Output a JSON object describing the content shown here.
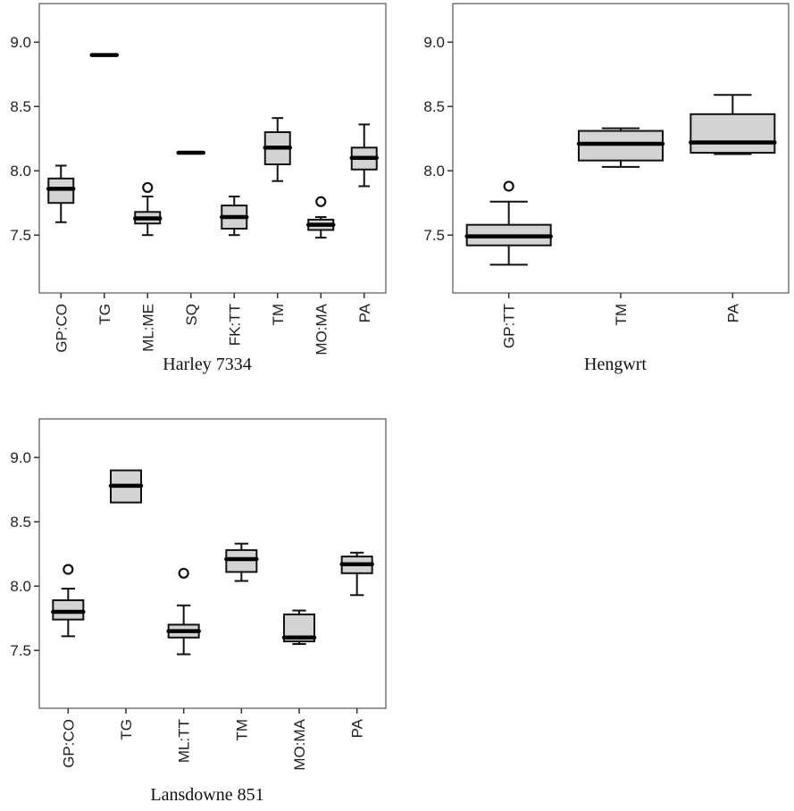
{
  "chart_data": [
    {
      "type": "boxplot",
      "caption": "Harley 7334",
      "ylim": [
        7.05,
        9.3
      ],
      "yticks": [
        "7.5",
        "8.0",
        "8.5",
        "9.0"
      ],
      "categories": [
        "GP:CO",
        "TG",
        "ML:ME",
        "SQ",
        "FK:TT",
        "TM",
        "MO:MA",
        "PA"
      ],
      "boxes": [
        {
          "min": 7.6,
          "q1": 7.75,
          "median": 7.86,
          "q3": 7.94,
          "max": 8.04,
          "outliers": []
        },
        {
          "min": 8.9,
          "q1": 8.9,
          "median": 8.9,
          "q3": 8.9,
          "max": 8.9,
          "outliers": []
        },
        {
          "min": 7.5,
          "q1": 7.59,
          "median": 7.63,
          "q3": 7.68,
          "max": 7.8,
          "outliers": [
            7.87
          ]
        },
        {
          "min": 8.14,
          "q1": 8.14,
          "median": 8.14,
          "q3": 8.14,
          "max": 8.14,
          "outliers": []
        },
        {
          "min": 7.5,
          "q1": 7.55,
          "median": 7.64,
          "q3": 7.73,
          "max": 7.8,
          "outliers": []
        },
        {
          "min": 7.92,
          "q1": 8.05,
          "median": 8.18,
          "q3": 8.3,
          "max": 8.41,
          "outliers": []
        },
        {
          "min": 7.48,
          "q1": 7.54,
          "median": 7.58,
          "q3": 7.62,
          "max": 7.64,
          "outliers": [
            7.76
          ]
        },
        {
          "min": 7.88,
          "q1": 8.01,
          "median": 8.1,
          "q3": 8.18,
          "max": 8.36,
          "outliers": []
        }
      ]
    },
    {
      "type": "boxplot",
      "caption": "Hengwrt",
      "ylim": [
        7.05,
        9.3
      ],
      "yticks": [
        "7.5",
        "8.0",
        "8.5",
        "9.0"
      ],
      "categories": [
        "GP:TT",
        "TM",
        "PA"
      ],
      "boxes": [
        {
          "min": 7.27,
          "q1": 7.42,
          "median": 7.49,
          "q3": 7.58,
          "max": 7.76,
          "outliers": [
            7.88
          ]
        },
        {
          "min": 8.03,
          "q1": 8.08,
          "median": 8.21,
          "q3": 8.31,
          "max": 8.33,
          "outliers": []
        },
        {
          "min": 8.13,
          "q1": 8.14,
          "median": 8.22,
          "q3": 8.44,
          "max": 8.59,
          "outliers": []
        }
      ]
    },
    {
      "type": "boxplot",
      "caption": "Lansdowne 851",
      "ylim": [
        7.05,
        9.3
      ],
      "yticks": [
        "7.5",
        "8.0",
        "8.5",
        "9.0"
      ],
      "categories": [
        "GP:CO",
        "TG",
        "ML:TT",
        "TM",
        "MO:MA",
        "PA"
      ],
      "boxes": [
        {
          "min": 7.61,
          "q1": 7.74,
          "median": 7.8,
          "q3": 7.89,
          "max": 7.98,
          "outliers": [
            8.13
          ]
        },
        {
          "min": 8.65,
          "q1": 8.65,
          "median": 8.78,
          "q3": 8.9,
          "max": 8.9,
          "outliers": []
        },
        {
          "min": 7.47,
          "q1": 7.6,
          "median": 7.65,
          "q3": 7.7,
          "max": 7.85,
          "outliers": [
            8.1
          ]
        },
        {
          "min": 8.04,
          "q1": 8.11,
          "median": 8.21,
          "q3": 8.28,
          "max": 8.33,
          "outliers": []
        },
        {
          "min": 7.55,
          "q1": 7.57,
          "median": 7.6,
          "q3": 7.78,
          "max": 7.81,
          "outliers": []
        },
        {
          "min": 7.93,
          "q1": 8.1,
          "median": 8.17,
          "q3": 8.23,
          "max": 8.26,
          "outliers": []
        }
      ]
    }
  ]
}
